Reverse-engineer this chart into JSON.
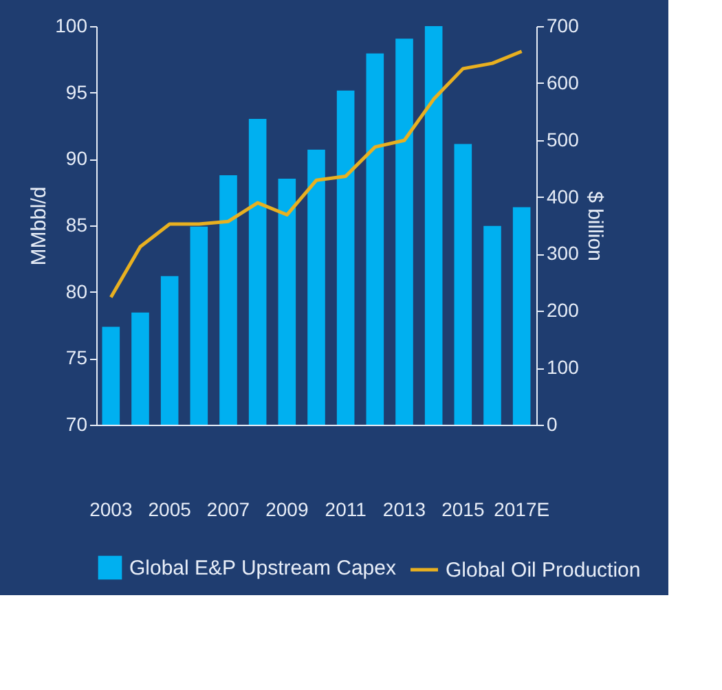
{
  "chart_data": {
    "type": "bar",
    "ylabel": "MMbbl/d",
    "y2label": "$ billion",
    "categories": [
      "2003",
      null,
      "2005",
      null,
      "2007",
      null,
      "2009",
      null,
      "2011",
      null,
      "2013",
      null,
      "2015",
      null,
      "2017E"
    ],
    "series": [
      {
        "name": "Global Oil Production",
        "type": "line",
        "color": "#e8b020",
        "values": [
          79.6,
          83.4,
          85.1,
          85.1,
          85.3,
          86.7,
          85.8,
          88.4,
          88.7,
          90.9,
          91.4,
          94.5,
          96.8,
          97.2,
          98.1
        ]
      },
      {
        "name": "Global E&P Upstream Capex",
        "axis": "y2",
        "color": "#00b0f0",
        "values": [
          172,
          197,
          261,
          348,
          438,
          537,
          432,
          483,
          587,
          652,
          678,
          700,
          493,
          349,
          382
        ]
      }
    ],
    "ylim": [
      70,
      100
    ],
    "yticks": [
      70,
      75,
      80,
      85,
      90,
      95,
      100
    ],
    "y2lim": [
      0,
      700
    ],
    "y2ticks": [
      0,
      100,
      200,
      300,
      400,
      500,
      600,
      700
    ],
    "grid": false,
    "legend": "bottom"
  }
}
